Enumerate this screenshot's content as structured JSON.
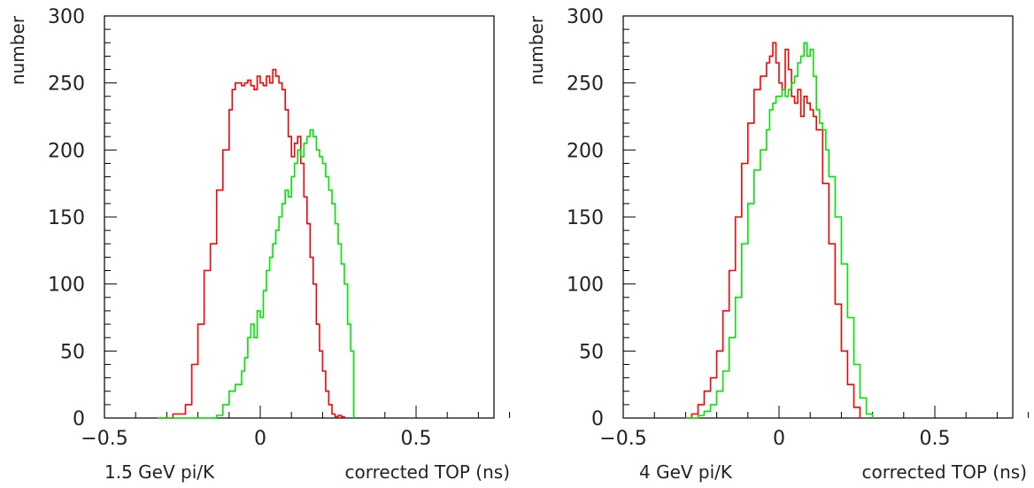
{
  "chart_data": [
    {
      "type": "histogram-step",
      "panel_label": "1.5 GeV pi/K",
      "xlabel": "corrected TOP (ns)",
      "ylabel": "number",
      "xlim": [
        -0.5,
        0.75
      ],
      "ylim": [
        0,
        300
      ],
      "x_major_ticks": [
        -0.5,
        0,
        0.5
      ],
      "x_tick_labels": [
        "−0.5",
        "0",
        "0.5"
      ],
      "y_major_ticks": [
        0,
        50,
        100,
        150,
        200,
        250,
        300
      ],
      "y_tick_labels": [
        "0",
        "50",
        "100",
        "150",
        "200",
        "250",
        "300"
      ],
      "series": [
        {
          "color": "#ff0000",
          "x": [
            -0.33,
            -0.28,
            -0.24,
            -0.22,
            -0.2,
            -0.18,
            -0.16,
            -0.14,
            -0.12,
            -0.1,
            -0.09,
            -0.08,
            -0.06,
            -0.05,
            -0.04,
            -0.03,
            -0.02,
            -0.01,
            0.0,
            0.01,
            0.02,
            0.03,
            0.04,
            0.05,
            0.06,
            0.07,
            0.08,
            0.09,
            0.1,
            0.11,
            0.12,
            0.13,
            0.14,
            0.15,
            0.16,
            0.17,
            0.18,
            0.19,
            0.2,
            0.21,
            0.22,
            0.23,
            0.24,
            0.25,
            0.26,
            0.27
          ],
          "y": [
            0,
            3,
            10,
            40,
            70,
            110,
            130,
            170,
            200,
            230,
            245,
            250,
            248,
            250,
            252,
            248,
            245,
            255,
            250,
            248,
            255,
            250,
            260,
            255,
            250,
            245,
            230,
            210,
            195,
            205,
            210,
            190,
            165,
            145,
            120,
            100,
            70,
            50,
            35,
            20,
            10,
            3,
            1,
            2,
            1,
            0
          ]
        },
        {
          "color": "#00e600",
          "x": [
            -0.33,
            -0.22,
            -0.14,
            -0.12,
            -0.1,
            -0.08,
            -0.06,
            -0.05,
            -0.04,
            -0.03,
            -0.02,
            -0.01,
            0.0,
            0.01,
            0.02,
            0.03,
            0.04,
            0.05,
            0.06,
            0.07,
            0.08,
            0.09,
            0.1,
            0.11,
            0.12,
            0.13,
            0.14,
            0.15,
            0.16,
            0.17,
            0.18,
            0.19,
            0.2,
            0.21,
            0.22,
            0.23,
            0.24,
            0.25,
            0.26,
            0.27,
            0.28,
            0.29,
            0.3
          ],
          "y": [
            0,
            0,
            2,
            10,
            20,
            25,
            35,
            45,
            60,
            70,
            60,
            80,
            75,
            95,
            110,
            120,
            130,
            140,
            150,
            160,
            170,
            165,
            180,
            190,
            200,
            195,
            205,
            210,
            215,
            210,
            200,
            195,
            190,
            180,
            170,
            160,
            145,
            130,
            115,
            100,
            70,
            50,
            0
          ]
        }
      ]
    },
    {
      "type": "histogram-step",
      "panel_label": "4 GeV pi/K",
      "xlabel": "corrected TOP (ns)",
      "ylabel": "number",
      "xlim": [
        -0.5,
        0.75
      ],
      "ylim": [
        0,
        300
      ],
      "x_major_ticks": [
        -0.5,
        0,
        0.5
      ],
      "x_tick_labels": [
        "−0.5",
        "0",
        "0.5"
      ],
      "y_major_ticks": [
        0,
        50,
        100,
        150,
        200,
        250,
        300
      ],
      "y_tick_labels": [
        "0",
        "50",
        "100",
        "150",
        "200",
        "250",
        "300"
      ],
      "series": [
        {
          "color": "#ff0000",
          "x": [
            -0.3,
            -0.28,
            -0.26,
            -0.24,
            -0.22,
            -0.2,
            -0.18,
            -0.16,
            -0.14,
            -0.12,
            -0.1,
            -0.08,
            -0.06,
            -0.04,
            -0.03,
            -0.02,
            -0.01,
            0.0,
            0.01,
            0.02,
            0.03,
            0.04,
            0.05,
            0.06,
            0.07,
            0.08,
            0.09,
            0.1,
            0.11,
            0.12,
            0.14,
            0.16,
            0.18,
            0.2,
            0.22,
            0.24,
            0.26
          ],
          "y": [
            0,
            3,
            10,
            20,
            30,
            50,
            80,
            110,
            150,
            190,
            220,
            245,
            255,
            265,
            270,
            280,
            265,
            250,
            245,
            275,
            260,
            240,
            235,
            245,
            225,
            240,
            235,
            230,
            225,
            215,
            175,
            130,
            85,
            50,
            25,
            8,
            0
          ]
        },
        {
          "color": "#00e600",
          "x": [
            -0.3,
            -0.26,
            -0.24,
            -0.22,
            -0.2,
            -0.18,
            -0.16,
            -0.14,
            -0.12,
            -0.1,
            -0.08,
            -0.06,
            -0.04,
            -0.03,
            -0.02,
            -0.01,
            0.0,
            0.01,
            0.02,
            0.03,
            0.04,
            0.05,
            0.06,
            0.07,
            0.08,
            0.09,
            0.1,
            0.11,
            0.12,
            0.13,
            0.14,
            0.15,
            0.16,
            0.18,
            0.2,
            0.22,
            0.24,
            0.26,
            0.28,
            0.3
          ],
          "y": [
            0,
            2,
            5,
            10,
            20,
            35,
            60,
            90,
            130,
            160,
            185,
            200,
            215,
            230,
            235,
            240,
            240,
            245,
            240,
            245,
            250,
            255,
            265,
            270,
            280,
            270,
            275,
            255,
            230,
            220,
            215,
            200,
            180,
            150,
            115,
            75,
            40,
            15,
            3,
            0
          ]
        }
      ]
    }
  ]
}
